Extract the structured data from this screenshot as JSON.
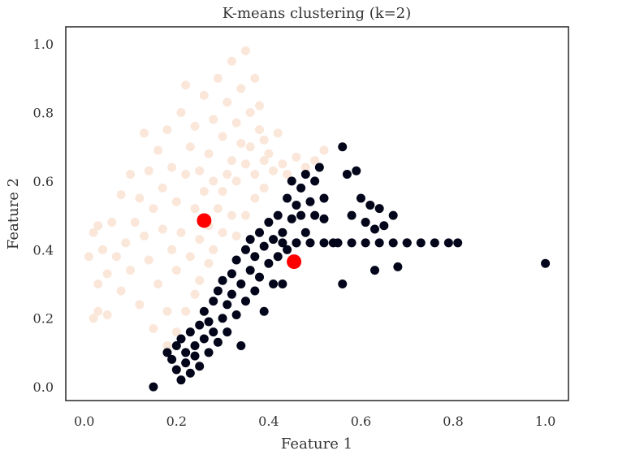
{
  "chart_data": {
    "type": "scatter",
    "title": "K-means clustering (k=2)",
    "xlabel": "Feature 1",
    "ylabel": "Feature 2",
    "xlim": [
      -0.04,
      1.05
    ],
    "ylim": [
      -0.04,
      1.05
    ],
    "xticks": [
      0.0,
      0.2,
      0.4,
      0.6,
      0.8,
      1.0
    ],
    "yticks": [
      0.0,
      0.2,
      0.4,
      0.6,
      0.8,
      1.0
    ],
    "xtick_labels": [
      "0.0",
      "0.2",
      "0.4",
      "0.6",
      "0.8",
      "1.0"
    ],
    "ytick_labels": [
      "0.0",
      "0.2",
      "0.4",
      "0.6",
      "0.8",
      "1.0"
    ],
    "grid": false,
    "colors": {
      "cluster_0": "#fae7da",
      "cluster_1": "#03051a",
      "centroid": "#ff0000"
    },
    "centroids": [
      {
        "x": 0.26,
        "y": 0.485
      },
      {
        "x": 0.455,
        "y": 0.365
      }
    ],
    "series": [
      {
        "color": "#fae7da",
        "points": [
          [
            0.01,
            0.38
          ],
          [
            0.02,
            0.45
          ],
          [
            0.03,
            0.3
          ],
          [
            0.03,
            0.47
          ],
          [
            0.04,
            0.4
          ],
          [
            0.05,
            0.33
          ],
          [
            0.06,
            0.48
          ],
          [
            0.07,
            0.38
          ],
          [
            0.08,
            0.56
          ],
          [
            0.08,
            0.28
          ],
          [
            0.09,
            0.42
          ],
          [
            0.1,
            0.62
          ],
          [
            0.1,
            0.34
          ],
          [
            0.11,
            0.48
          ],
          [
            0.12,
            0.55
          ],
          [
            0.12,
            0.24
          ],
          [
            0.13,
            0.44
          ],
          [
            0.13,
            0.74
          ],
          [
            0.14,
            0.63
          ],
          [
            0.14,
            0.37
          ],
          [
            0.15,
            0.52
          ],
          [
            0.15,
            0.17
          ],
          [
            0.16,
            0.69
          ],
          [
            0.16,
            0.3
          ],
          [
            0.17,
            0.46
          ],
          [
            0.17,
            0.58
          ],
          [
            0.18,
            0.22
          ],
          [
            0.18,
            0.75
          ],
          [
            0.19,
            0.4
          ],
          [
            0.19,
            0.64
          ],
          [
            0.2,
            0.34
          ],
          [
            0.2,
            0.54
          ],
          [
            0.21,
            0.8
          ],
          [
            0.21,
            0.45
          ],
          [
            0.22,
            0.62
          ],
          [
            0.22,
            0.88
          ],
          [
            0.23,
            0.38
          ],
          [
            0.23,
            0.7
          ],
          [
            0.24,
            0.52
          ],
          [
            0.24,
            0.76
          ],
          [
            0.25,
            0.43
          ],
          [
            0.25,
            0.63
          ],
          [
            0.26,
            0.85
          ],
          [
            0.26,
            0.57
          ],
          [
            0.27,
            0.68
          ],
          [
            0.27,
            0.47
          ],
          [
            0.28,
            0.78
          ],
          [
            0.28,
            0.6
          ],
          [
            0.29,
            0.9
          ],
          [
            0.29,
            0.52
          ],
          [
            0.3,
            0.73
          ],
          [
            0.3,
            0.57
          ],
          [
            0.31,
            0.83
          ],
          [
            0.31,
            0.62
          ],
          [
            0.32,
            0.95
          ],
          [
            0.32,
            0.66
          ],
          [
            0.33,
            0.77
          ],
          [
            0.33,
            0.6
          ],
          [
            0.34,
            0.87
          ],
          [
            0.34,
            0.71
          ],
          [
            0.35,
            0.98
          ],
          [
            0.35,
            0.65
          ],
          [
            0.36,
            0.8
          ],
          [
            0.36,
            0.7
          ],
          [
            0.37,
            0.9
          ],
          [
            0.37,
            0.62
          ],
          [
            0.38,
            0.75
          ],
          [
            0.38,
            0.82
          ],
          [
            0.39,
            0.66
          ],
          [
            0.39,
            0.72
          ],
          [
            0.4,
            0.68
          ],
          [
            0.41,
            0.63
          ],
          [
            0.42,
            0.74
          ],
          [
            0.43,
            0.65
          ],
          [
            0.44,
            0.62
          ],
          [
            0.46,
            0.67
          ],
          [
            0.48,
            0.64
          ],
          [
            0.5,
            0.66
          ],
          [
            0.52,
            0.69
          ],
          [
            0.3,
            0.45
          ],
          [
            0.28,
            0.4
          ],
          [
            0.27,
            0.36
          ],
          [
            0.25,
            0.31
          ],
          [
            0.24,
            0.27
          ],
          [
            0.22,
            0.22
          ],
          [
            0.2,
            0.16
          ],
          [
            0.18,
            0.12
          ],
          [
            0.05,
            0.21
          ],
          [
            0.03,
            0.22
          ],
          [
            0.02,
            0.2
          ],
          [
            0.35,
            0.5
          ],
          [
            0.33,
            0.44
          ],
          [
            0.32,
            0.5
          ],
          [
            0.37,
            0.55
          ],
          [
            0.39,
            0.58
          ]
        ]
      },
      {
        "color": "#03051a",
        "points": [
          [
            0.15,
            0.0
          ],
          [
            0.18,
            0.1
          ],
          [
            0.19,
            0.08
          ],
          [
            0.2,
            0.12
          ],
          [
            0.2,
            0.05
          ],
          [
            0.21,
            0.02
          ],
          [
            0.21,
            0.14
          ],
          [
            0.22,
            0.07
          ],
          [
            0.22,
            0.1
          ],
          [
            0.23,
            0.16
          ],
          [
            0.23,
            0.04
          ],
          [
            0.24,
            0.12
          ],
          [
            0.24,
            0.09
          ],
          [
            0.25,
            0.18
          ],
          [
            0.25,
            0.06
          ],
          [
            0.26,
            0.14
          ],
          [
            0.26,
            0.22
          ],
          [
            0.27,
            0.1
          ],
          [
            0.27,
            0.19
          ],
          [
            0.28,
            0.25
          ],
          [
            0.28,
            0.16
          ],
          [
            0.29,
            0.13
          ],
          [
            0.29,
            0.28
          ],
          [
            0.3,
            0.2
          ],
          [
            0.3,
            0.31
          ],
          [
            0.31,
            0.24
          ],
          [
            0.31,
            0.16
          ],
          [
            0.32,
            0.33
          ],
          [
            0.32,
            0.27
          ],
          [
            0.33,
            0.21
          ],
          [
            0.33,
            0.37
          ],
          [
            0.34,
            0.3
          ],
          [
            0.34,
            0.12
          ],
          [
            0.35,
            0.4
          ],
          [
            0.35,
            0.25
          ],
          [
            0.36,
            0.34
          ],
          [
            0.36,
            0.43
          ],
          [
            0.37,
            0.28
          ],
          [
            0.37,
            0.38
          ],
          [
            0.38,
            0.45
          ],
          [
            0.38,
            0.32
          ],
          [
            0.39,
            0.41
          ],
          [
            0.39,
            0.22
          ],
          [
            0.4,
            0.48
          ],
          [
            0.4,
            0.36
          ],
          [
            0.41,
            0.43
          ],
          [
            0.41,
            0.3
          ],
          [
            0.42,
            0.5
          ],
          [
            0.42,
            0.38
          ],
          [
            0.43,
            0.45
          ],
          [
            0.43,
            0.3
          ],
          [
            0.44,
            0.55
          ],
          [
            0.44,
            0.4
          ],
          [
            0.45,
            0.49
          ],
          [
            0.45,
            0.6
          ],
          [
            0.46,
            0.53
          ],
          [
            0.46,
            0.42
          ],
          [
            0.47,
            0.58
          ],
          [
            0.47,
            0.5
          ],
          [
            0.48,
            0.62
          ],
          [
            0.48,
            0.45
          ],
          [
            0.49,
            0.54
          ],
          [
            0.5,
            0.6
          ],
          [
            0.5,
            0.5
          ],
          [
            0.51,
            0.64
          ],
          [
            0.52,
            0.55
          ],
          [
            0.52,
            0.49
          ],
          [
            0.54,
            0.42
          ],
          [
            0.56,
            0.7
          ],
          [
            0.56,
            0.3
          ],
          [
            0.57,
            0.62
          ],
          [
            0.59,
            0.63
          ],
          [
            0.58,
            0.5
          ],
          [
            0.6,
            0.55
          ],
          [
            0.61,
            0.48
          ],
          [
            0.62,
            0.53
          ],
          [
            0.63,
            0.46
          ],
          [
            0.63,
            0.34
          ],
          [
            0.64,
            0.52
          ],
          [
            0.65,
            0.47
          ],
          [
            0.67,
            0.5
          ],
          [
            0.68,
            0.35
          ],
          [
            0.7,
            0.42
          ],
          [
            1.0,
            0.36
          ],
          [
            0.43,
            0.42
          ],
          [
            0.46,
            0.42
          ],
          [
            0.49,
            0.42
          ],
          [
            0.52,
            0.42
          ],
          [
            0.55,
            0.42
          ],
          [
            0.58,
            0.42
          ],
          [
            0.61,
            0.42
          ],
          [
            0.64,
            0.42
          ],
          [
            0.67,
            0.42
          ],
          [
            0.7,
            0.42
          ],
          [
            0.73,
            0.42
          ],
          [
            0.76,
            0.42
          ],
          [
            0.79,
            0.42
          ],
          [
            0.81,
            0.42
          ]
        ]
      }
    ]
  }
}
